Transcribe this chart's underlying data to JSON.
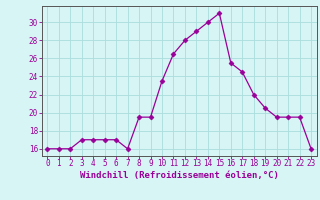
{
  "x": [
    0,
    1,
    2,
    3,
    4,
    5,
    6,
    7,
    8,
    9,
    10,
    11,
    12,
    13,
    14,
    15,
    16,
    17,
    18,
    19,
    20,
    21,
    22,
    23
  ],
  "y": [
    16,
    16,
    16,
    17,
    17,
    17,
    17,
    16,
    19.5,
    19.5,
    23.5,
    26.5,
    28,
    29,
    30,
    31,
    25.5,
    24.5,
    22,
    20.5,
    19.5,
    19.5,
    19.5,
    16
  ],
  "line_color": "#990099",
  "marker": "D",
  "marker_size": 2.5,
  "bg_color": "#d8f5f5",
  "grid_color": "#aadddd",
  "xlabel": "Windchill (Refroidissement éolien,°C)",
  "xlabel_fontsize": 6.5,
  "ylabel_ticks": [
    16,
    18,
    20,
    22,
    24,
    26,
    28,
    30
  ],
  "ylim": [
    15.2,
    31.8
  ],
  "xlim": [
    -0.5,
    23.5
  ],
  "tick_fontsize": 5.5,
  "tick_color": "#990099",
  "spine_color": "#555555"
}
